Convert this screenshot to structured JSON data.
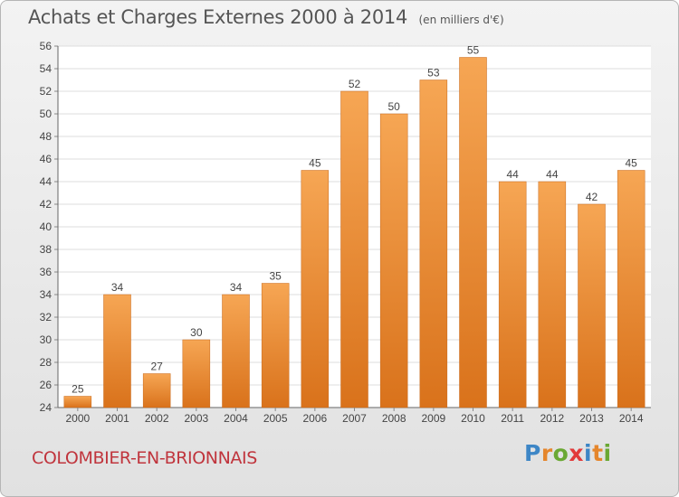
{
  "header": {
    "title": "Achats et Charges Externes 2000 à 2014",
    "subtitle": "(en milliers d'€)"
  },
  "footer": {
    "commune": "COLOMBIER-EN-BRIONNAIS",
    "brand_letters": [
      "P",
      "r",
      "o",
      "x",
      "i",
      "t",
      "i"
    ],
    "brand_colors": [
      "#3d86c6",
      "#e5862c",
      "#6aa833",
      "#e23a3a",
      "#3d86c6",
      "#e5862c",
      "#6aa833"
    ]
  },
  "chart_data": {
    "type": "bar",
    "categories": [
      "2000",
      "2001",
      "2002",
      "2003",
      "2004",
      "2005",
      "2006",
      "2007",
      "2008",
      "2009",
      "2010",
      "2011",
      "2012",
      "2013",
      "2014"
    ],
    "values": [
      25,
      34,
      27,
      30,
      34,
      35,
      45,
      52,
      50,
      53,
      55,
      44,
      44,
      42,
      45
    ],
    "ylim": [
      24,
      56
    ],
    "yticks": [
      24,
      26,
      28,
      30,
      32,
      34,
      36,
      38,
      40,
      42,
      44,
      46,
      48,
      50,
      52,
      54,
      56
    ],
    "grid": true,
    "bar_color_top": "#f6a654",
    "bar_color_bottom": "#d9721b"
  }
}
